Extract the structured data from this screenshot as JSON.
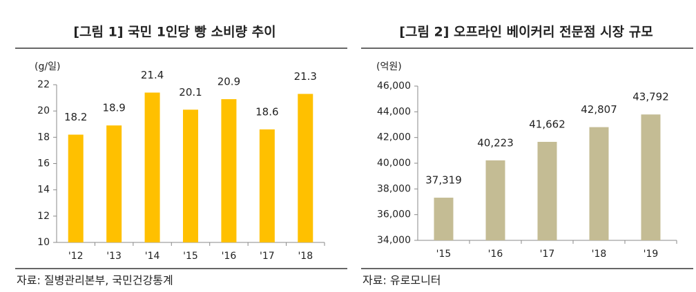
{
  "chart_data": [
    {
      "type": "bar",
      "title": "[그림 1] 국민 1인당 빵 소비량 추이",
      "y_label": "(g/일)",
      "categories": [
        "'12",
        "'13",
        "'14",
        "'15",
        "'16",
        "'17",
        "'18"
      ],
      "values": [
        18.2,
        18.9,
        21.4,
        20.1,
        20.9,
        18.6,
        21.3
      ],
      "color": "#ffc000",
      "ylim": [
        10,
        22
      ],
      "yticks": [
        10,
        12,
        14,
        16,
        18,
        20,
        22
      ],
      "grid": false,
      "source": "자료: 질병관리본부, 국민건강통계"
    },
    {
      "type": "bar",
      "title": "[그림 2] 오프라인 베이커리 전문점 시장 규모",
      "y_label": "(억원)",
      "categories": [
        "'15",
        "'16",
        "'17",
        "'18",
        "'19"
      ],
      "values": [
        37319,
        40223,
        41662,
        42807,
        43792
      ],
      "value_labels": [
        "37,319",
        "40,223",
        "41,662",
        "42,807",
        "43,792"
      ],
      "color": "#c4bc94",
      "ylim": [
        34000,
        46000
      ],
      "yticks": [
        {
          "value": 34000,
          "label": "34,000"
        },
        {
          "value": 36000,
          "label": "36,000"
        },
        {
          "value": 38000,
          "label": "38,000"
        },
        {
          "value": 40000,
          "label": "40,000"
        },
        {
          "value": 42000,
          "label": "42,000"
        },
        {
          "value": 44000,
          "label": "44,000"
        },
        {
          "value": 46000,
          "label": "46,000"
        }
      ],
      "grid": false,
      "source": "자료: 유로모니터"
    }
  ]
}
